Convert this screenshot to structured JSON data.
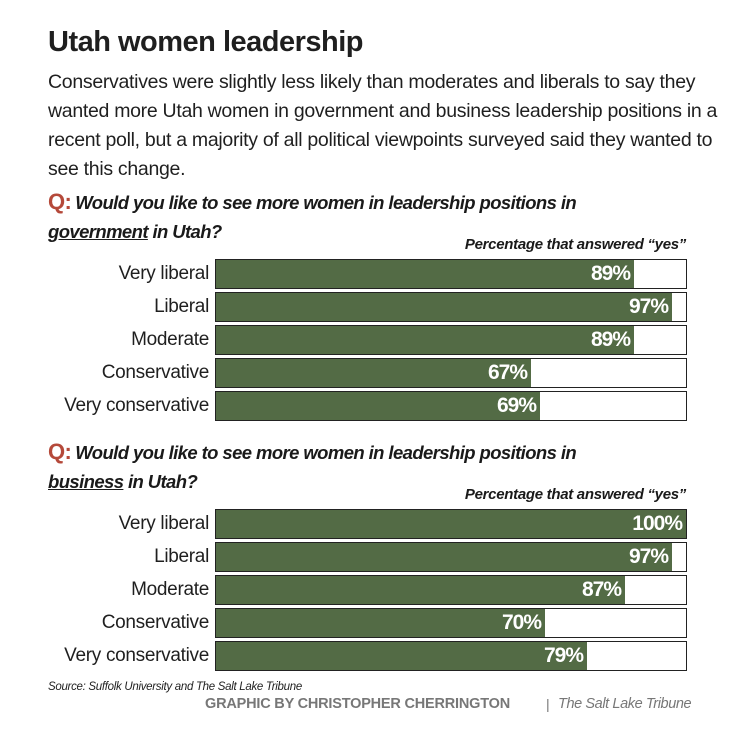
{
  "title": "Utah women leadership",
  "subtitle": "Conservatives were slightly less likely than moderates and liberals to say they wanted more Utah women in government and business leadership positions in a recent poll, but a majority of all political viewpoints surveyed said they wanted to see this change.",
  "colors": {
    "bar": "#536b45",
    "q_marker": "#b5493a",
    "credit": "#777777"
  },
  "source": "Source: Suffolk University and The Salt Lake Tribune",
  "credit": "GRAPHIC BY CHRISTOPHER CHERRINGTON",
  "separator": "|",
  "publication": "The Salt Lake Tribune",
  "chart_data": [
    {
      "type": "bar",
      "orientation": "horizontal",
      "question_marker": "Q:",
      "question_pre": "Would you like to see more women in leadership positions in",
      "question_keyword": "government",
      "question_post": "in Utah?",
      "value_label": "Percentage that answered “yes”",
      "categories": [
        "Very liberal",
        "Liberal",
        "Moderate",
        "Conservative",
        "Very conservative"
      ],
      "values": [
        89,
        97,
        89,
        67,
        69
      ],
      "labels": [
        "89%",
        "97%",
        "89%",
        "67%",
        "69%"
      ],
      "xlim": [
        0,
        100
      ],
      "unit": "%"
    },
    {
      "type": "bar",
      "orientation": "horizontal",
      "question_marker": "Q:",
      "question_pre": "Would you like to see more women in leadership positions in",
      "question_keyword": "business",
      "question_post": "in Utah?",
      "value_label": "Percentage that answered “yes”",
      "categories": [
        "Very liberal",
        "Liberal",
        "Moderate",
        "Conservative",
        "Very conservative"
      ],
      "values": [
        100,
        97,
        87,
        70,
        79
      ],
      "labels": [
        "100%",
        "97%",
        "87%",
        "70%",
        "79%"
      ],
      "xlim": [
        0,
        100
      ],
      "unit": "%"
    }
  ]
}
